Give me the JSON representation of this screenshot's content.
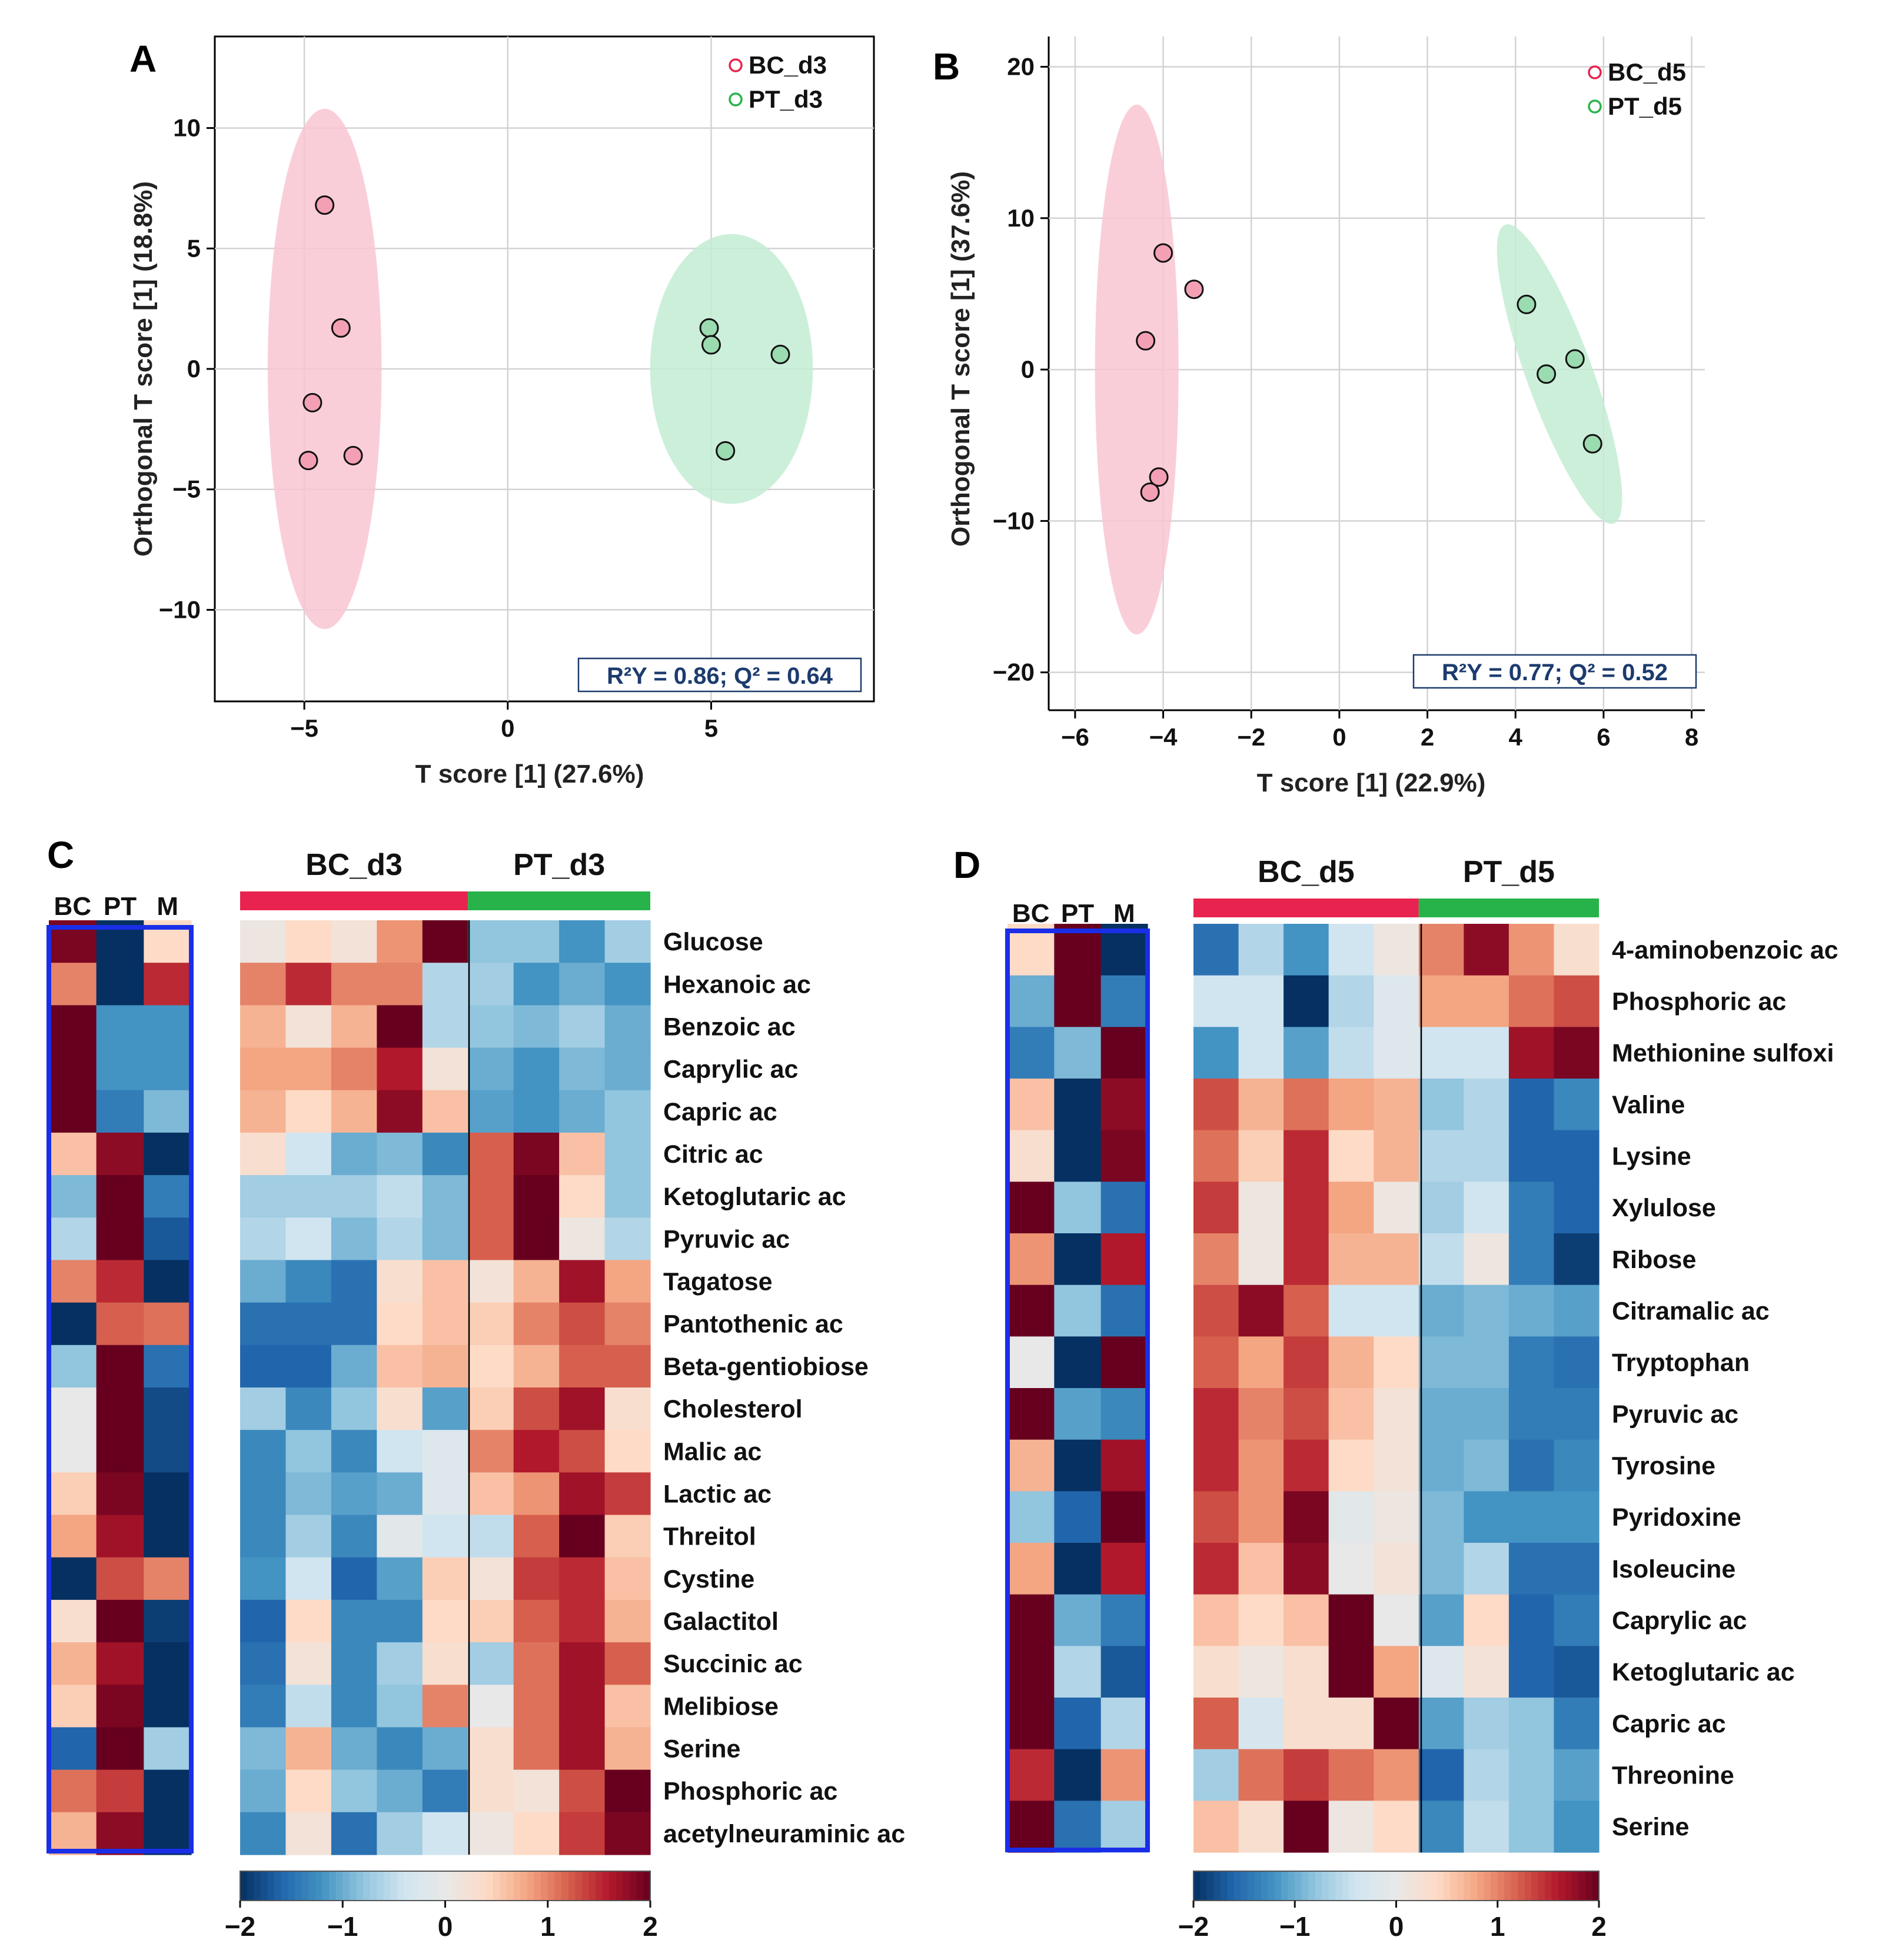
{
  "colors": {
    "bc": "#e8234f",
    "pt": "#27b34a",
    "bc_ellipse": "#f9c6d2",
    "pt_ellipse": "#c3ecd3",
    "bc_marker": "#f3a0b4",
    "pt_marker": "#9adbb0",
    "r2_text": "#1c3b6e",
    "heat_frame": "#1a2ee8",
    "grid": "#d3d3d3",
    "heat_scale": [
      "#053061",
      "#2166ac",
      "#4393c3",
      "#92c5de",
      "#d1e5f0",
      "#e8e8e8",
      "#fddbc7",
      "#f4a582",
      "#d6604d",
      "#b2182b",
      "#67001f"
    ]
  },
  "chart_data": [
    {
      "panel": "A",
      "type": "scatter",
      "title": "",
      "xlabel": "T score [1] (27.6%)",
      "ylabel": "Orthogonal T score [1] (18.8%)",
      "xlim": [
        -7.2,
        9.0
      ],
      "ylim": [
        -13.8,
        13.8
      ],
      "xticks": [
        -5,
        0,
        5
      ],
      "xtick_labels": [
        "−5",
        "0",
        "5"
      ],
      "yticks": [
        -10,
        -5,
        0,
        5,
        10
      ],
      "ytick_labels": [
        "−10",
        "−5",
        "0",
        "5",
        "10"
      ],
      "grid": true,
      "legend_position": "top-right",
      "annotation": "R²Y = 0.86; Q² = 0.64",
      "series": [
        {
          "name": "BC_d3",
          "group": "bc",
          "points": [
            [
              -4.5,
              6.8
            ],
            [
              -4.1,
              1.7
            ],
            [
              -4.8,
              -1.4
            ],
            [
              -3.8,
              -3.6
            ],
            [
              -4.9,
              -3.8
            ]
          ],
          "ellipse": {
            "cx": -4.5,
            "cy": 0.0,
            "rx": 1.4,
            "ry": 10.8
          }
        },
        {
          "name": "PT_d3",
          "group": "pt",
          "points": [
            [
              4.95,
              1.7
            ],
            [
              5.0,
              1.0
            ],
            [
              6.7,
              0.6
            ],
            [
              5.35,
              -3.4
            ]
          ],
          "ellipse": {
            "cx": 5.5,
            "cy": 0.0,
            "rx": 2.0,
            "ry": 5.6
          }
        }
      ]
    },
    {
      "panel": "B",
      "type": "scatter",
      "title": "",
      "xlabel": "T score [1] (22.9%)",
      "ylabel": "Orthogonal T score [1] (37.6%)",
      "xlim": [
        -6.6,
        8.3
      ],
      "ylim": [
        -22.5,
        22.0
      ],
      "xticks": [
        -6,
        -4,
        -2,
        0,
        2,
        4,
        6,
        8
      ],
      "xtick_labels": [
        "−6",
        "−4",
        "−2",
        "0",
        "2",
        "4",
        "6",
        "8"
      ],
      "yticks": [
        -20,
        -10,
        0,
        10,
        20
      ],
      "ytick_labels": [
        "−20",
        "−10",
        "0",
        "10",
        "20"
      ],
      "grid": true,
      "legend_position": "top-right",
      "annotation": "R²Y = 0.77; Q² = 0.52",
      "series": [
        {
          "name": "BC_d5",
          "group": "bc",
          "points": [
            [
              -4.0,
              7.7
            ],
            [
              -3.3,
              5.3
            ],
            [
              -4.4,
              1.9
            ],
            [
              -4.1,
              -7.1
            ],
            [
              -4.3,
              -8.1
            ]
          ],
          "ellipse": {
            "cx": -4.6,
            "cy": 0.0,
            "rx": 0.95,
            "ry": 17.5,
            "angle": 0
          }
        },
        {
          "name": "PT_d5",
          "group": "pt",
          "points": [
            [
              4.25,
              4.3
            ],
            [
              5.35,
              0.7
            ],
            [
              4.7,
              -0.3
            ],
            [
              5.75,
              -4.9
            ]
          ],
          "ellipse": {
            "cx": 5.0,
            "cy": -0.3,
            "rx": 0.75,
            "ry": 10.5,
            "angle": -20
          }
        }
      ]
    },
    {
      "panel": "C",
      "type": "heatmap",
      "groups": [
        {
          "name": "BC_d3",
          "columns": 5,
          "group": "bc"
        },
        {
          "name": "PT_d3",
          "columns": 4,
          "group": "pt"
        }
      ],
      "side_columns": [
        "BC",
        "PT",
        "M"
      ],
      "colorbar": {
        "min": -2,
        "max": 2,
        "ticks": [
          -2,
          -1,
          0,
          1,
          2
        ],
        "tick_labels": [
          "−2",
          "−1",
          "0",
          "1",
          "2"
        ]
      },
      "rows": [
        "Glucose",
        "Hexanoic ac",
        "Benzoic ac",
        "Caprylic ac",
        "Capric ac",
        "Citric ac",
        "Ketoglutaric ac",
        "Pyruvic ac",
        "Tagatose",
        "Pantothenic ac",
        "Beta-gentiobiose",
        "Cholesterol",
        "Malic ac",
        "Lactic ac",
        "Threitol",
        "Cystine",
        "Galactitol",
        "Succinic ac",
        "Melibiose",
        "Serine",
        "Phosphoric ac",
        "acetylneuraminic ac"
      ],
      "values": [
        [
          0.1,
          0.4,
          0.2,
          0.9,
          2.2,
          -0.8,
          -0.8,
          -1.2,
          -0.7
        ],
        [
          1.0,
          1.5,
          1.0,
          1.0,
          -0.6,
          -0.7,
          -1.2,
          -1.0,
          -1.2
        ],
        [
          0.7,
          0.2,
          0.7,
          2.2,
          -0.6,
          -0.8,
          -0.9,
          -0.7,
          -1.0
        ],
        [
          0.8,
          0.8,
          1.0,
          1.6,
          0.2,
          -1.0,
          -1.2,
          -0.9,
          -1.0
        ],
        [
          0.7,
          0.4,
          0.7,
          1.8,
          0.6,
          -1.1,
          -1.2,
          -1.0,
          -0.8
        ],
        [
          0.3,
          -0.4,
          -1.0,
          -0.9,
          -1.3,
          1.2,
          1.9,
          0.6,
          -0.8
        ],
        [
          -0.7,
          -0.7,
          -0.7,
          -0.5,
          -0.9,
          1.2,
          2.1,
          0.4,
          -0.8
        ],
        [
          -0.6,
          -0.4,
          -0.9,
          -0.6,
          -0.9,
          1.2,
          2.1,
          0.1,
          -0.6
        ],
        [
          -1.0,
          -1.3,
          -1.5,
          0.3,
          0.6,
          0.2,
          0.7,
          1.7,
          0.8
        ],
        [
          -1.5,
          -1.5,
          -1.5,
          0.4,
          0.6,
          0.5,
          1.0,
          1.3,
          1.0
        ],
        [
          -1.6,
          -1.6,
          -1.0,
          0.6,
          0.7,
          0.4,
          0.7,
          1.2,
          1.2
        ],
        [
          -0.7,
          -1.3,
          -0.8,
          0.3,
          -1.1,
          0.5,
          1.3,
          1.7,
          0.3
        ],
        [
          -1.3,
          -0.8,
          -1.3,
          -0.4,
          -0.2,
          1.0,
          1.6,
          1.3,
          0.4
        ],
        [
          -1.3,
          -0.9,
          -1.1,
          -1.0,
          -0.2,
          0.6,
          0.9,
          1.7,
          1.4
        ],
        [
          -1.3,
          -0.7,
          -1.3,
          -0.1,
          -0.4,
          -0.5,
          1.2,
          2.0,
          0.5
        ],
        [
          -1.2,
          -0.4,
          -1.6,
          -1.1,
          0.5,
          0.2,
          1.4,
          1.5,
          0.6
        ],
        [
          -1.6,
          0.4,
          -1.3,
          -1.3,
          0.4,
          0.5,
          1.2,
          1.5,
          0.7
        ],
        [
          -1.5,
          0.2,
          -1.3,
          -0.7,
          0.3,
          -0.7,
          1.1,
          1.7,
          1.2
        ],
        [
          -1.4,
          -0.5,
          -1.3,
          -0.8,
          1.0,
          0.0,
          1.1,
          1.7,
          0.6
        ],
        [
          -0.9,
          0.7,
          -1.0,
          -1.3,
          -1.0,
          0.3,
          1.1,
          1.7,
          0.7
        ],
        [
          -1.0,
          0.4,
          -0.8,
          -1.0,
          -1.4,
          0.3,
          0.2,
          1.3,
          2.0
        ],
        [
          -1.3,
          0.2,
          -1.5,
          -0.7,
          -0.4,
          0.1,
          0.4,
          1.4,
          1.9
        ]
      ],
      "side_values": [
        [
          1.9,
          -2.0,
          0.4
        ],
        [
          1.0,
          -2.1,
          1.5
        ],
        [
          2.2,
          -1.2,
          -1.2
        ],
        [
          2.2,
          -1.2,
          -1.2
        ],
        [
          2.2,
          -1.4,
          -0.9
        ],
        [
          0.6,
          1.8,
          -2.0
        ],
        [
          -0.9,
          2.2,
          -1.4
        ],
        [
          -0.6,
          2.2,
          -1.7
        ],
        [
          1.0,
          1.5,
          -2.2
        ],
        [
          -2.2,
          1.2,
          1.1
        ],
        [
          -0.8,
          2.2,
          -1.5
        ],
        [
          0.0,
          2.1,
          -1.8
        ],
        [
          0.0,
          2.1,
          -1.8
        ],
        [
          0.5,
          1.9,
          -2.0
        ],
        [
          0.8,
          1.7,
          -2.1
        ],
        [
          -2.2,
          1.3,
          1.0
        ],
        [
          0.3,
          2.0,
          -1.9
        ],
        [
          0.7,
          1.7,
          -2.1
        ],
        [
          0.5,
          1.9,
          -2.0
        ],
        [
          -1.6,
          2.2,
          -0.7
        ],
        [
          1.1,
          1.4,
          -2.2
        ],
        [
          0.7,
          1.8,
          -2.1
        ]
      ]
    },
    {
      "panel": "D",
      "type": "heatmap",
      "groups": [
        {
          "name": "BC_d5",
          "columns": 5,
          "group": "bc"
        },
        {
          "name": "PT_d5",
          "columns": 4,
          "group": "pt"
        }
      ],
      "side_columns": [
        "BC",
        "PT",
        "M"
      ],
      "colorbar": {
        "min": -2,
        "max": 2,
        "ticks": [
          -2,
          -1,
          0,
          1,
          2
        ],
        "tick_labels": [
          "−2",
          "−1",
          "0",
          "1",
          "2"
        ]
      },
      "rows": [
        "4-aminobenzoic ac",
        "Phosphoric ac",
        "Methionine sulfoxi",
        "Valine",
        "Lysine",
        "Xylulose",
        "Ribose",
        "Citramalic ac",
        "Tryptophan",
        "Pyruvic ac",
        "Tyrosine",
        "Pyridoxine",
        "Isoleucine",
        "Caprylic ac",
        "Ketoglutaric ac",
        "Capric ac",
        "Threonine",
        "Serine"
      ],
      "values": [
        [
          -1.5,
          -0.6,
          -1.2,
          -0.4,
          0.1,
          1.0,
          1.8,
          0.9,
          0.3
        ],
        [
          -0.4,
          -0.4,
          -2.0,
          -0.6,
          -0.2,
          0.8,
          0.8,
          1.1,
          1.3
        ],
        [
          -1.2,
          -0.4,
          -1.1,
          -0.5,
          -0.2,
          -0.4,
          -0.4,
          1.7,
          1.9
        ],
        [
          1.3,
          0.7,
          1.1,
          0.8,
          0.7,
          -0.8,
          -0.6,
          -1.6,
          -1.3
        ],
        [
          1.1,
          0.5,
          1.5,
          0.4,
          0.7,
          -0.6,
          -0.6,
          -1.6,
          -1.6
        ],
        [
          1.4,
          0.1,
          1.5,
          0.8,
          0.1,
          -0.7,
          -0.4,
          -1.4,
          -1.6
        ],
        [
          1.0,
          0.1,
          1.5,
          0.7,
          0.7,
          -0.5,
          0.1,
          -1.4,
          -1.9
        ],
        [
          1.3,
          1.8,
          1.2,
          -0.4,
          -0.4,
          -1.0,
          -0.9,
          -1.0,
          -1.1
        ],
        [
          1.2,
          0.8,
          1.4,
          0.7,
          0.4,
          -0.9,
          -0.9,
          -1.4,
          -1.5
        ],
        [
          1.5,
          1.0,
          1.3,
          0.6,
          0.2,
          -1.0,
          -1.0,
          -1.4,
          -1.4
        ],
        [
          1.5,
          0.9,
          1.5,
          0.4,
          0.2,
          -1.0,
          -0.9,
          -1.5,
          -1.3
        ],
        [
          1.3,
          0.9,
          1.9,
          -0.1,
          0.1,
          -0.9,
          -1.2,
          -1.2,
          -1.2
        ],
        [
          1.5,
          0.6,
          1.8,
          0.0,
          0.2,
          -0.9,
          -0.6,
          -1.5,
          -1.5
        ],
        [
          0.6,
          0.4,
          0.6,
          2.1,
          0.0,
          -1.1,
          0.4,
          -1.6,
          -1.4
        ],
        [
          0.3,
          0.1,
          0.3,
          2.1,
          0.8,
          -0.2,
          0.2,
          -1.6,
          -1.7
        ],
        [
          1.2,
          -0.3,
          0.3,
          0.3,
          2.2,
          -1.1,
          -0.7,
          -0.8,
          -1.4
        ],
        [
          -0.7,
          1.1,
          1.4,
          1.1,
          0.9,
          -1.6,
          -0.6,
          -0.8,
          -1.1
        ],
        [
          0.6,
          0.3,
          2.2,
          0.1,
          0.4,
          -1.3,
          -0.5,
          -0.8,
          -1.2
        ]
      ],
      "side_values": [
        [
          0.4,
          2.0,
          -2.1
        ],
        [
          -1.0,
          2.2,
          -1.4
        ],
        [
          -1.4,
          -0.9,
          2.2
        ],
        [
          0.6,
          -2.2,
          1.8
        ],
        [
          0.3,
          -2.1,
          1.9
        ],
        [
          2.2,
          -0.8,
          -1.5
        ],
        [
          0.9,
          -2.2,
          1.6
        ],
        [
          2.2,
          -0.8,
          -1.5
        ],
        [
          0.0,
          -2.0,
          2.0
        ],
        [
          2.2,
          -1.1,
          -1.3
        ],
        [
          0.7,
          -2.2,
          1.7
        ],
        [
          -0.8,
          -1.6,
          2.2
        ],
        [
          0.8,
          -2.2,
          1.6
        ],
        [
          2.2,
          -1.0,
          -1.4
        ],
        [
          2.2,
          -0.6,
          -1.7
        ],
        [
          2.2,
          -1.6,
          -0.6
        ],
        [
          1.5,
          -2.2,
          0.9
        ],
        [
          2.2,
          -1.5,
          -0.7
        ]
      ]
    }
  ]
}
